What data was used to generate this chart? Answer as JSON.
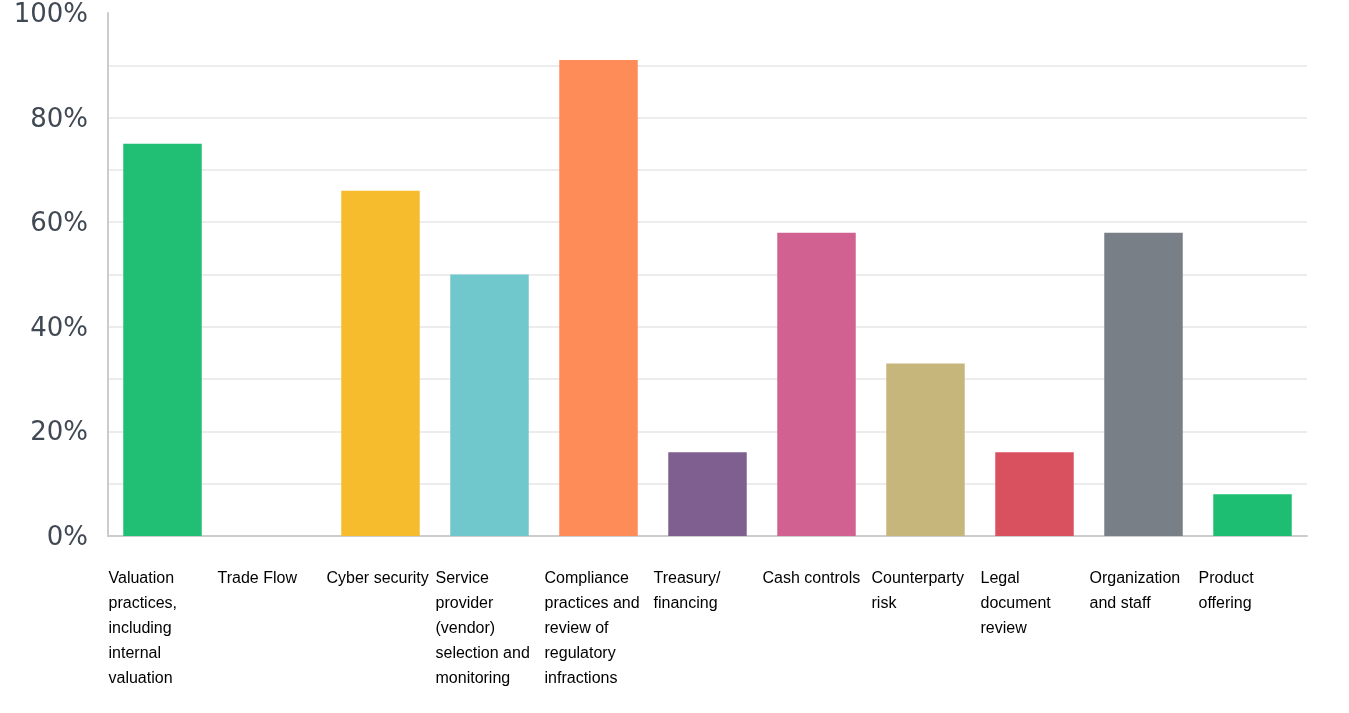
{
  "chart_data": {
    "type": "bar",
    "categories": [
      "Valuation practices, including internal valuation",
      "Trade Flow",
      "Cyber security",
      "Service provider (vendor) selection and monitoring",
      "Compliance practices and review of regulatory infractions",
      "Treasury/financing",
      "Cash controls",
      "Counterparty risk",
      "Legal document review",
      "Organization and staff",
      "Product offering"
    ],
    "values": [
      75,
      0,
      66,
      50,
      91,
      16,
      58,
      33,
      16,
      58,
      8
    ],
    "colors": [
      "#20bf73",
      null,
      "#f6bc2e",
      "#70c8cc",
      "#fe8c59",
      "#7e5f8f",
      "#d06190",
      "#c7b67c",
      "#d9505e",
      "#787f87",
      "#1dbe71"
    ],
    "ylim": [
      0,
      100
    ],
    "yticks": [
      {
        "value": 0,
        "label": "0%"
      },
      {
        "value": 20,
        "label": "20%"
      },
      {
        "value": 40,
        "label": "40%"
      },
      {
        "value": 60,
        "label": "60%"
      },
      {
        "value": 80,
        "label": "80%"
      },
      {
        "value": 100,
        "label": "100%"
      }
    ],
    "grid": "y"
  }
}
